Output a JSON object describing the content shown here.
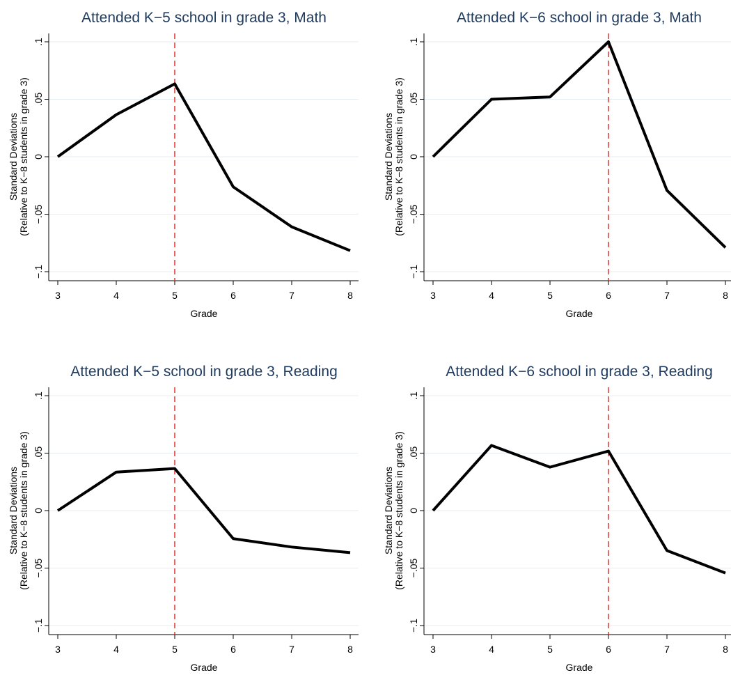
{
  "chart_data": [
    {
      "type": "line",
      "title": "Attended K−5 school in grade 3, Math",
      "x_label": "Grade",
      "y_label": [
        "Standard Deviations",
        "(Relative to K−8 students in grade 3)"
      ],
      "x": [
        3,
        4,
        5,
        6,
        7,
        8
      ],
      "values": [
        0,
        0.0366,
        0.0634,
        -0.0262,
        -0.061,
        -0.0817
      ],
      "color": "#000000",
      "xlim": [
        3,
        8
      ],
      "xticks": [
        3,
        4,
        5,
        6,
        7,
        8
      ],
      "ylim": [
        -0.1,
        0.1
      ],
      "yticks": [
        {
          "value": -0.1,
          "label": "−.1"
        },
        {
          "value": -0.05,
          "label": "−.05"
        },
        0,
        {
          "value": 0.05,
          "label": ".05"
        },
        {
          "value": 0.1,
          "label": ".1"
        }
      ],
      "grid": true,
      "vline": 5,
      "vline_color": "#e0322e"
    },
    {
      "type": "line",
      "title": "Attended K−6 school in grade 3, Math",
      "x_label": "Grade",
      "y_label": [
        "Standard Deviations",
        "(Relative to K−8 students in grade 3)"
      ],
      "x": [
        3,
        4,
        5,
        6,
        7,
        8
      ],
      "values": [
        0,
        0.05,
        0.052,
        0.1,
        -0.0293,
        -0.079
      ],
      "color": "#000000",
      "xlim": [
        3,
        8
      ],
      "xticks": [
        3,
        4,
        5,
        6,
        7,
        8
      ],
      "ylim": [
        -0.1,
        0.1
      ],
      "yticks": [
        {
          "value": -0.1,
          "label": "−.1"
        },
        {
          "value": -0.05,
          "label": "−.05"
        },
        0,
        {
          "value": 0.05,
          "label": ".05"
        },
        {
          "value": 0.1,
          "label": ".1"
        }
      ],
      "grid": true,
      "vline": 6,
      "vline_color": "#e0322e"
    },
    {
      "type": "line",
      "title": "Attended K−5 school in grade 3, Reading",
      "x_label": "Grade",
      "y_label": [
        "Standard Deviations",
        "(Relative to K−8 students in grade 3)"
      ],
      "x": [
        3,
        4,
        5,
        6,
        7,
        8
      ],
      "values": [
        0,
        0.0335,
        0.0366,
        -0.0244,
        -0.0317,
        -0.0366
      ],
      "color": "#000000",
      "xlim": [
        3,
        8
      ],
      "xticks": [
        3,
        4,
        5,
        6,
        7,
        8
      ],
      "ylim": [
        -0.1,
        0.1
      ],
      "yticks": [
        {
          "value": -0.1,
          "label": "−.1"
        },
        {
          "value": -0.05,
          "label": "−.05"
        },
        0,
        {
          "value": 0.05,
          "label": ".05"
        },
        {
          "value": 0.1,
          "label": ".1"
        }
      ],
      "grid": true,
      "vline": 5,
      "vline_color": "#e0322e"
    },
    {
      "type": "line",
      "title": "Attended K−6 school in grade 3, Reading",
      "x_label": "Grade",
      "y_label": [
        "Standard Deviations",
        "(Relative to K−8 students in grade 3)"
      ],
      "x": [
        3,
        4,
        5,
        6,
        7,
        8
      ],
      "values": [
        0,
        0.0567,
        0.0378,
        0.0518,
        -0.0348,
        -0.0543
      ],
      "color": "#000000",
      "xlim": [
        3,
        8
      ],
      "xticks": [
        3,
        4,
        5,
        6,
        7,
        8
      ],
      "ylim": [
        -0.1,
        0.1
      ],
      "yticks": [
        {
          "value": -0.1,
          "label": "−.1"
        },
        {
          "value": -0.05,
          "label": "−.05"
        },
        0,
        {
          "value": 0.05,
          "label": ".05"
        },
        {
          "value": 0.1,
          "label": ".1"
        }
      ],
      "grid": true,
      "vline": 6,
      "vline_color": "#e0322e"
    }
  ]
}
